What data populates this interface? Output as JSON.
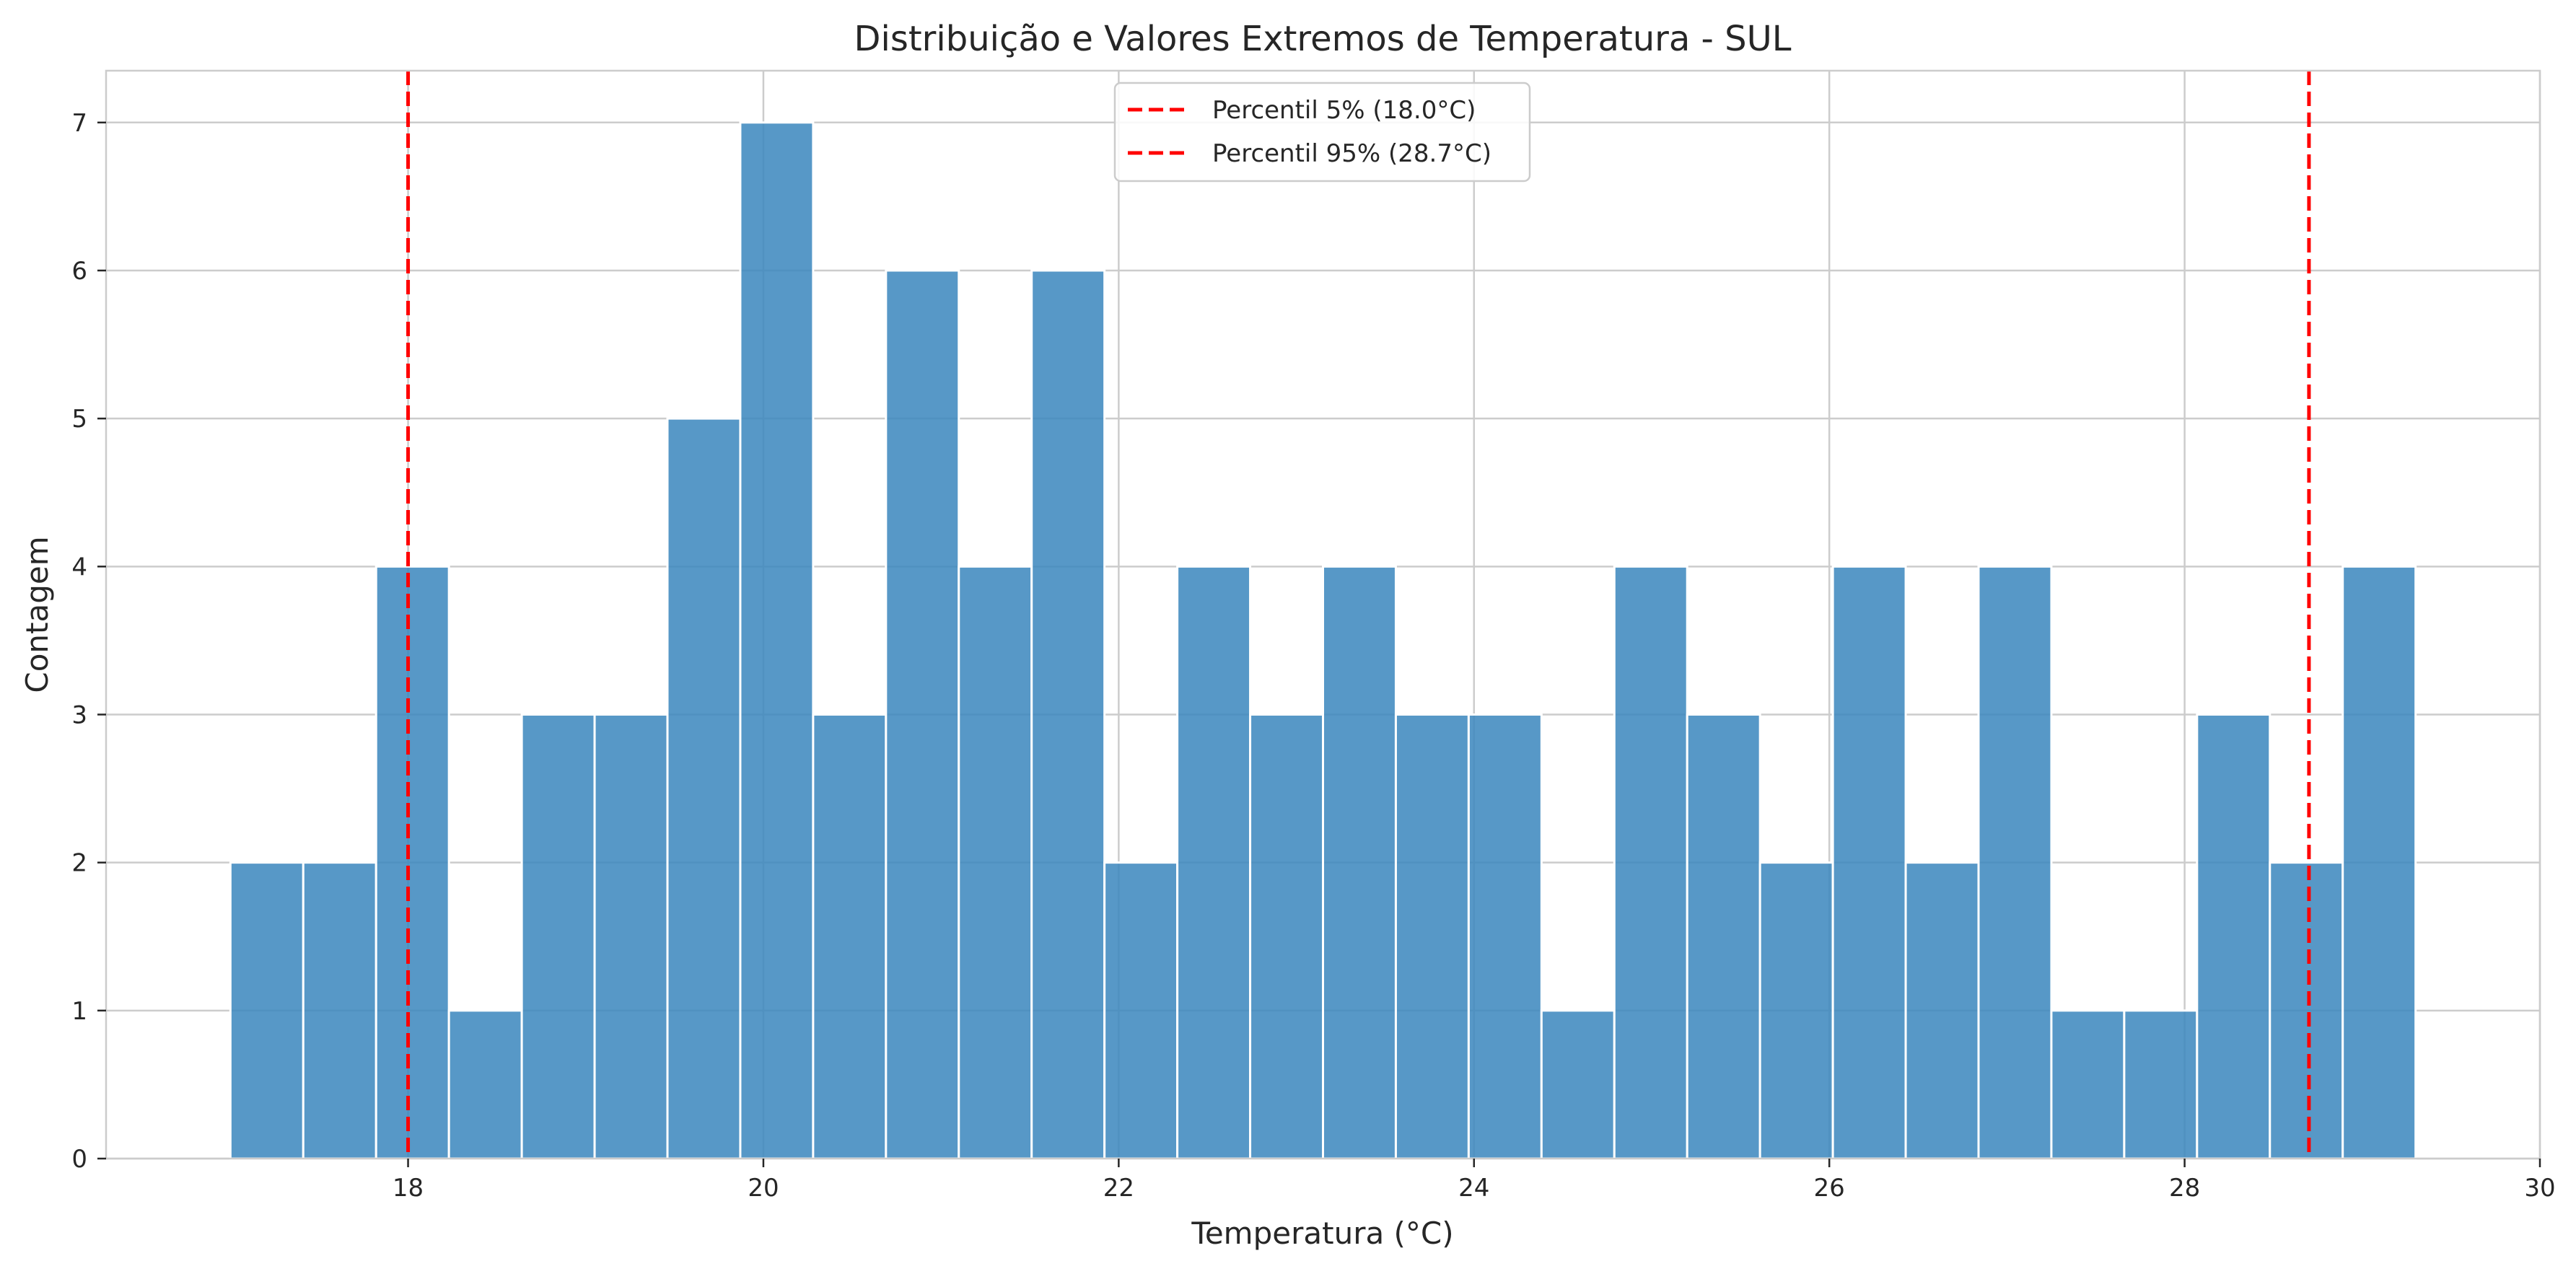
{
  "chart_data": {
    "type": "bar",
    "title": "Distribuição e Valores Extremos de Temperatura - SUL",
    "xlabel": "Temperatura (°C)",
    "ylabel": "Contagem",
    "xlim": [
      16.3,
      30.0
    ],
    "ylim": [
      0,
      7.35
    ],
    "x_ticks": [
      18,
      20,
      22,
      24,
      26,
      28,
      30
    ],
    "y_ticks": [
      0,
      1,
      2,
      3,
      4,
      5,
      6,
      7
    ],
    "grid": true,
    "bin_start": 17.0,
    "bin_width": 0.41,
    "counts": [
      2,
      2,
      4,
      1,
      3,
      3,
      5,
      7,
      3,
      6,
      4,
      6,
      2,
      4,
      3,
      4,
      3,
      3,
      1,
      4,
      3,
      2,
      4,
      2,
      4,
      1,
      1,
      3,
      2,
      4
    ],
    "reference_lines": [
      {
        "label": "Percentil 5% (18.0°C)",
        "x": 18.0,
        "color": "#ff0000"
      },
      {
        "label": "Percentil 95% (28.7°C)",
        "x": 28.7,
        "color": "#ff0000"
      }
    ],
    "legend_position": "top-center",
    "colors": {
      "bars": "#3a86bd",
      "lines": "#ff0000"
    }
  }
}
